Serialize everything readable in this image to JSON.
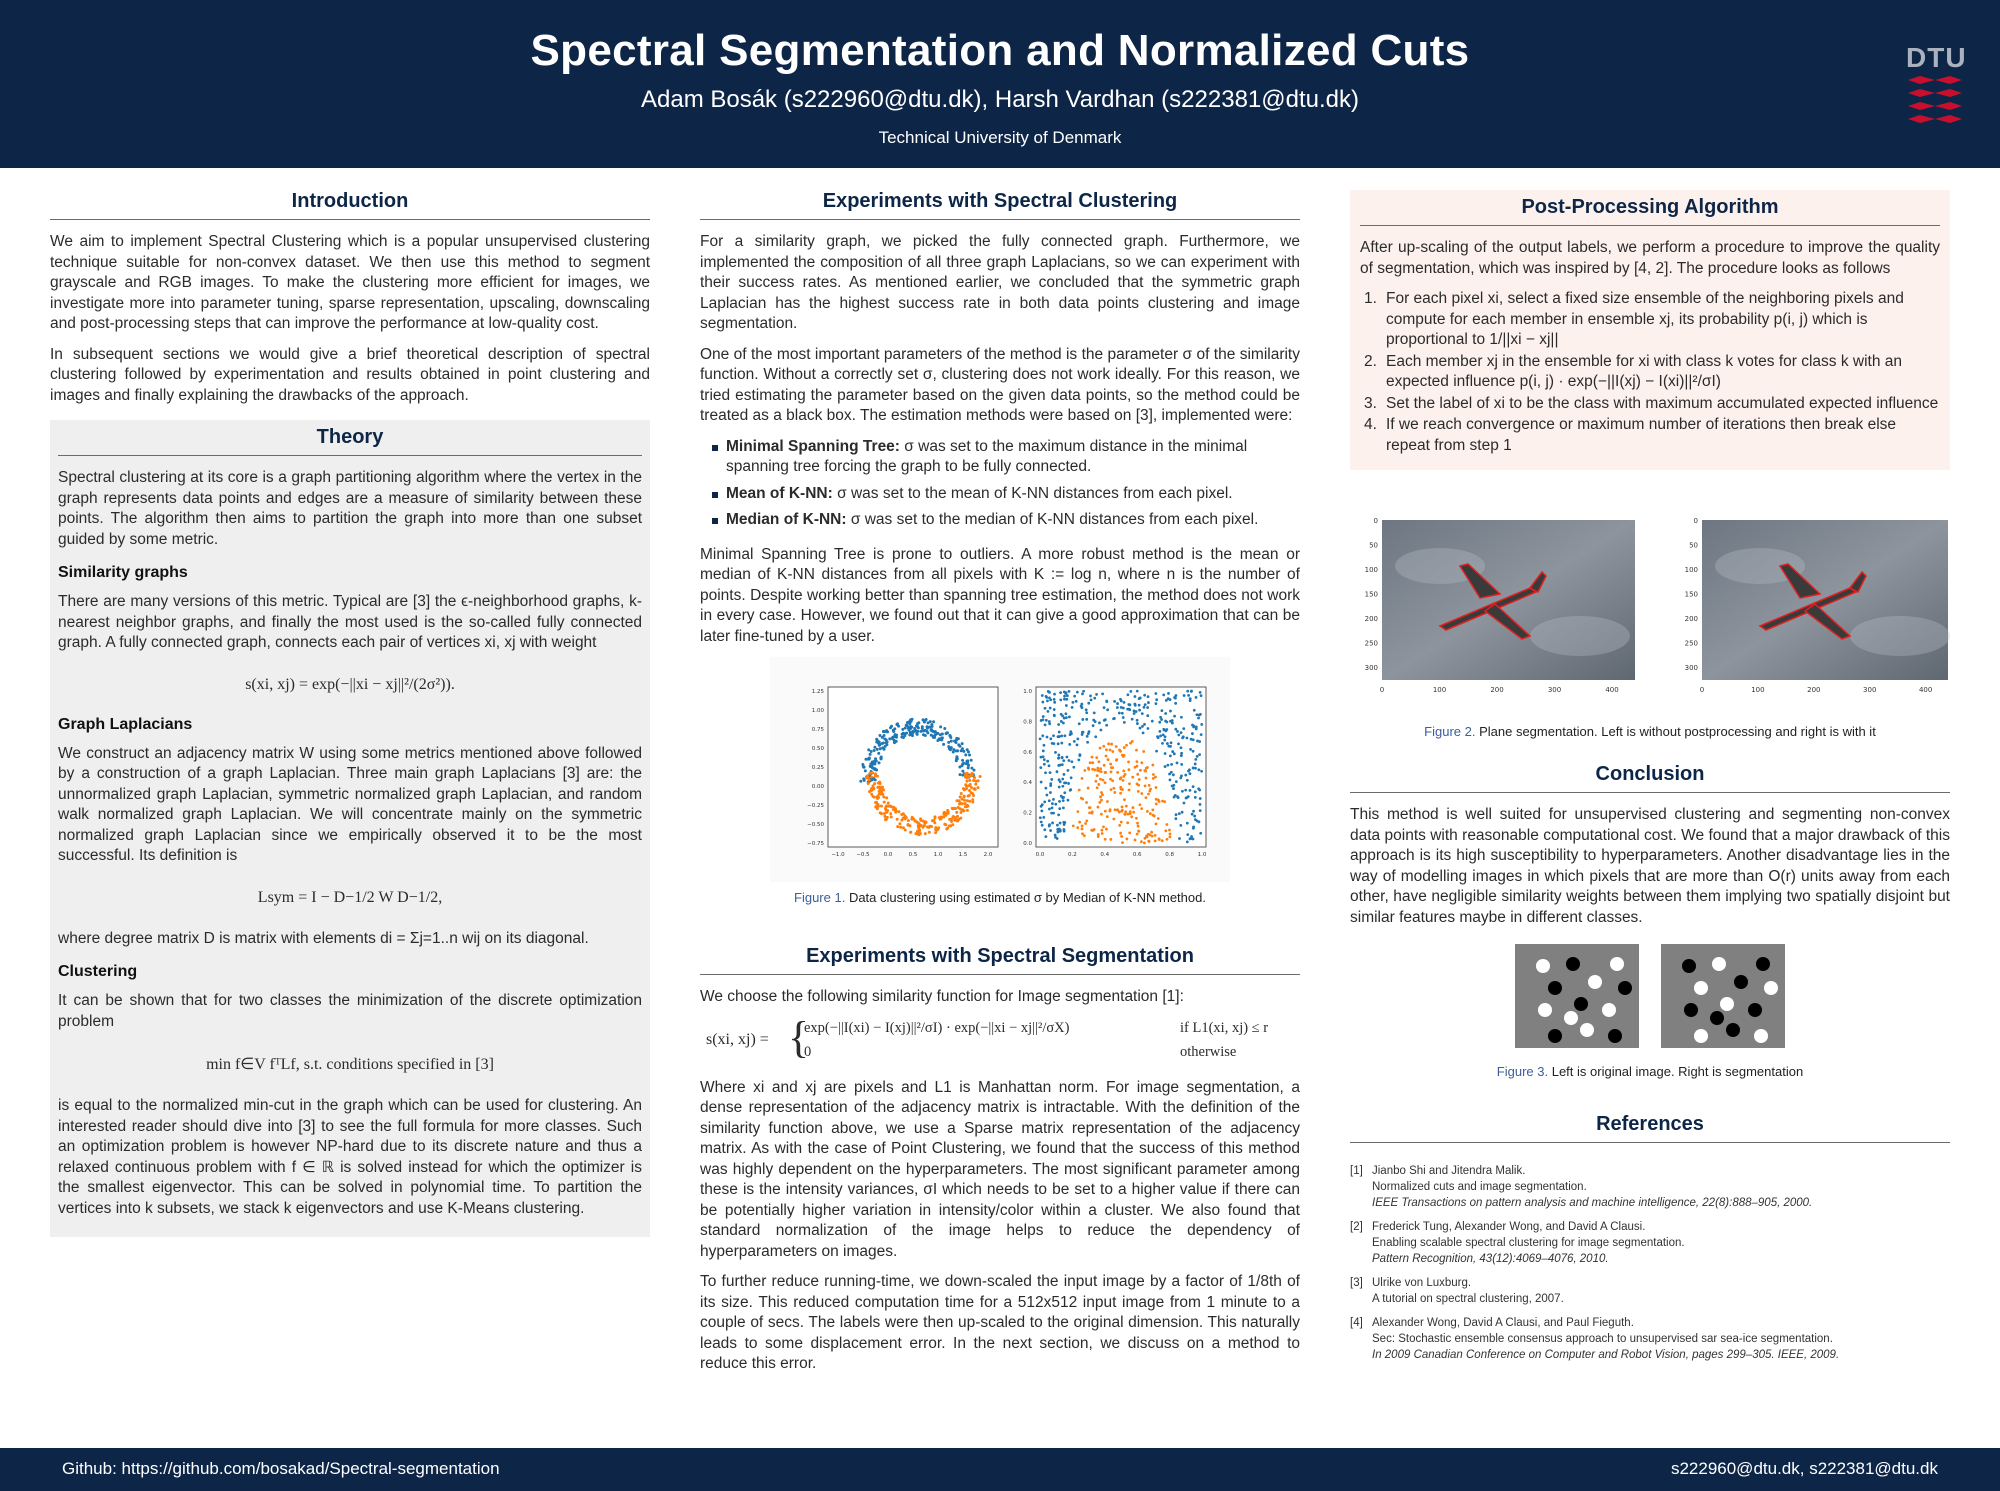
{
  "header": {
    "title": "Spectral Segmentation and Normalized Cuts",
    "authors": "Adam Bosák (s222960@dtu.dk), Harsh Vardhan (s222381@dtu.dk)",
    "affiliation": "Technical University of Denmark",
    "logo_text": "DTU"
  },
  "intro": {
    "heading": "Introduction",
    "p1": "We aim to implement Spectral Clustering which is a popular unsupervised clustering technique suitable for non-convex dataset. We then use this method to segment grayscale and RGB images. To make the clustering more efficient for images, we investigate more into parameter tuning, sparse representation, upscaling, downscaling and post-processing steps that can improve the performance at low-quality cost.",
    "p2": "In subsequent sections we would give a brief theoretical description of spectral clustering followed by experimentation and results obtained in point clustering and images and finally explaining the drawbacks of the approach."
  },
  "theory": {
    "heading": "Theory",
    "p1": "Spectral clustering at its core is a graph partitioning algorithm where the vertex in the graph represents data points and edges are a measure of similarity between these points. The algorithm then aims to partition the graph into more than one subset guided by some metric.",
    "sim_heading": "Similarity graphs",
    "sim_p": "There are many versions of this metric. Typical are [3] the ϵ-neighborhood graphs, k-nearest neighbor graphs, and finally the most used is the so-called fully connected graph. A fully connected graph, connects each pair of vertices xi, xj with weight",
    "sim_eq": "s(xi, xj) = exp(−||xi − xj||²/(2σ²)).",
    "lap_heading": "Graph Laplacians",
    "lap_p": "We construct an adjacency matrix W using some metrics mentioned above followed by a construction of a graph Laplacian. Three main graph Laplacians [3] are: the unnormalized graph Laplacian, symmetric normalized graph Laplacian, and random walk normalized graph Laplacian. We will concentrate mainly on the symmetric normalized graph Laplacian since we empirically observed it to be the most successful. Its definition is",
    "lap_eq": "Lsym = I − D−1/2 W D−1/2,",
    "lap_p2": "where degree matrix D is matrix with elements di = Σj=1..n wij on its diagonal.",
    "clu_heading": "Clustering",
    "clu_p": "It can be shown that for two classes the minimization of the discrete optimization problem",
    "clu_eq": "min f∈V  fᵀLf, s.t. conditions specified in [3]",
    "clu_p2": "is equal to the normalized min-cut in the graph which can be used for clustering. An interested reader should dive into [3] to see the full formula for more classes. Such an optimization problem is however NP-hard due to its discrete nature and thus a relaxed continuous problem with f ∈ ℝ is solved instead for which the optimizer is the smallest eigenvector. This can be solved in polynomial time. To partition the vertices into k subsets, we stack k eigenvectors and use K-Means clustering."
  },
  "exp_clustering": {
    "heading": "Experiments with Spectral Clustering",
    "p1": "For a similarity graph, we picked the fully connected graph. Furthermore, we implemented the composition of all three graph Laplacians, so we can experiment with their success rates. As mentioned earlier, we concluded that the symmetric graph Laplacian has the highest success rate in both data points clustering and image segmentation.",
    "p2": "One of the most important parameters of the method is the parameter σ of the similarity function. Without a correctly set σ, clustering does not work ideally. For this reason, we tried estimating the parameter based on the given data points, so the method could be treated as a black box. The estimation methods were based on [3], implemented were:",
    "bullets": [
      {
        "bold": "Minimal Spanning Tree:",
        "text": " σ was set to the maximum distance in the minimal spanning tree forcing the graph to be fully connected."
      },
      {
        "bold": "Mean of K-NN:",
        "text": " σ was set to the mean of K-NN distances from each pixel."
      },
      {
        "bold": "Median of K-NN:",
        "text": " σ was set to the median of K-NN distances from each pixel."
      }
    ],
    "p3": "Minimal Spanning Tree is prone to outliers. A more robust method is the mean or median of K-NN distances from all pixels with K := log n, where n is the number of points. Despite working better than spanning tree estimation, the method does not work in every case. However, we found out that it can give a good approximation that can be later fine-tuned by a user.",
    "fig_label": "Figure 1.",
    "fig_caption": " Data clustering using estimated σ by Median of K-NN method.",
    "fig_ticks_left_y": [
      "1.25",
      "1.00",
      "0.75",
      "0.50",
      "0.25",
      "0.00",
      "−0.25",
      "−0.50",
      "−0.75"
    ],
    "fig_ticks_left_x": [
      "−1.0",
      "−0.5",
      "0.0",
      "0.5",
      "1.0",
      "1.5",
      "2.0"
    ],
    "fig_ticks_right": [
      "0.0",
      "0.2",
      "0.4",
      "0.6",
      "0.8",
      "1.0"
    ]
  },
  "exp_segmentation": {
    "heading": "Experiments with Spectral Segmentation",
    "p1": "We choose the following similarity function for Image segmentation [1]:",
    "eq_lhs": "s(xi, xj) =",
    "eq_case1": "exp(−||I(xi) − I(xj)||²/σI) · exp(−||xi − xj||²/σX)",
    "eq_cond1": "if L1(xi, xj) ≤ r",
    "eq_case2": "0",
    "eq_cond2": "otherwise",
    "p2": "Where xi and xj are pixels and L1 is Manhattan norm. For image segmentation, a dense representation of the adjacency matrix is intractable. With the definition of the similarity function above, we use a Sparse matrix representation of the adjacency matrix. As with the case of Point Clustering, we found that the success of this method was highly dependent on the hyperparameters. The most significant parameter among these is the intensity variances, σI which needs to be set to a higher value if there can be potentially higher variation in intensity/color within a cluster. We also found that standard normalization of the image helps to reduce the dependency of hyperparameters on images.",
    "p3": "To further reduce running-time, we down-scaled the input image by a factor of 1/8th of its size. This reduced computation time for a 512x512 input image from 1 minute to a couple of secs. The labels were then up-scaled to the original dimension. This naturally leads to some displacement error. In the next section, we discuss on a method to reduce this error."
  },
  "post": {
    "heading": "Post-Processing Algorithm",
    "p1": "After up-scaling of the output labels, we perform a procedure to improve the quality of segmentation, which was inspired by [4, 2]. The procedure looks as follows",
    "steps": [
      {
        "n": "1.",
        "text": "For each pixel xi, select a fixed size ensemble of the neighboring pixels and compute for each member in ensemble xj, its probability p(i, j) which is proportional to 1/||xi − xj||"
      },
      {
        "n": "2.",
        "text": "Each member xj in the ensemble for xi with class k votes for class k with an expected influence p(i, j) · exp(−||I(xj) − I(xi)||²/σI)"
      },
      {
        "n": "3.",
        "text": "Set the label of xi to be the class with maximum accumulated expected influence"
      },
      {
        "n": "4.",
        "text": "If we reach convergence or maximum number of iterations then break else repeat from step 1"
      }
    ],
    "fig_label": "Figure 2.",
    "fig_caption": " Plane segmentation. Left is without postprocessing and right is with it",
    "fig_y_ticks": [
      "0",
      "50",
      "100",
      "150",
      "200",
      "250",
      "300"
    ],
    "fig_x_ticks": [
      "0",
      "100",
      "200",
      "300",
      "400"
    ]
  },
  "conclusion": {
    "heading": "Conclusion",
    "p1": "This method is well suited for unsupervised clustering and segmenting non-convex data points with reasonable computational cost. We found that a major drawback of this approach is its high susceptibility to hyperparameters. Another disadvantage lies in the way of modelling images in which pixels that are more than O(r) units away from each other, have negligible similarity weights between them implying two spatially disjoint but similar features maybe in different classes.",
    "fig_label": "Figure 3.",
    "fig_caption": " Left is original image. Right is segmentation"
  },
  "references": {
    "heading": "References",
    "items": [
      {
        "n": "[1]",
        "l1": "Jianbo Shi and Jitendra Malik.",
        "l2": "Normalized cuts and image segmentation.",
        "l3": "IEEE Transactions on pattern analysis and machine intelligence, 22(8):888–905, 2000."
      },
      {
        "n": "[2]",
        "l1": "Frederick Tung, Alexander Wong, and David A Clausi.",
        "l2": "Enabling scalable spectral clustering for image segmentation.",
        "l3": "Pattern Recognition, 43(12):4069–4076, 2010."
      },
      {
        "n": "[3]",
        "l1": "Ulrike von Luxburg.",
        "l2": "A tutorial on spectral clustering, 2007.",
        "l3": ""
      },
      {
        "n": "[4]",
        "l1": "Alexander Wong, David A Clausi, and Paul Fieguth.",
        "l2": "Sec: Stochastic ensemble consensus approach to unsupervised sar sea-ice segmentation.",
        "l3": "In 2009 Canadian Conference on Computer and Robot Vision, pages 299–305. IEEE, 2009."
      }
    ]
  },
  "footer": {
    "left": "Github: https://github.com/bosakad/Spectral-segmentation",
    "right": "s222960@dtu.dk, s222381@dtu.dk"
  },
  "colors": {
    "navy": "#0d2647",
    "cluster_blue": "#1f77b4",
    "cluster_orange": "#ff7f0e",
    "segment_red": "#e02020",
    "logo_red": "#c8102e"
  }
}
